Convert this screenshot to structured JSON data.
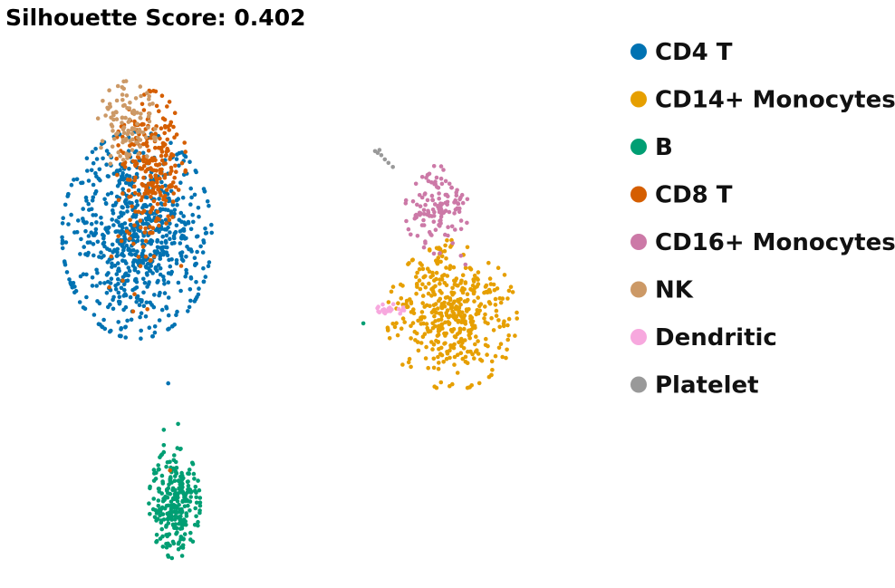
{
  "chart_data": {
    "type": "scatter",
    "title": "Silhouette Score: 0.402",
    "xlabel": "",
    "ylabel": "",
    "axes_visible": false,
    "grid": false,
    "legend_position": "right",
    "xlim": [
      0,
      100
    ],
    "ylim": [
      0,
      100
    ],
    "series": [
      {
        "name": "CD4 T",
        "color": "#0072B2",
        "clusters": [
          {
            "center": [
              15.3,
              60.0
            ],
            "sigma": [
              3.8,
              8.0
            ],
            "n": 760
          }
        ],
        "points": [
          [
            18.8,
            34.8
          ]
        ]
      },
      {
        "name": "CD14+ Monocytes",
        "color": "#E69F00",
        "clusters": [
          {
            "center": [
              50.5,
              46.0
            ],
            "sigma": [
              3.3,
              5.6
            ],
            "n": 430
          },
          {
            "center": [
              48.9,
              56.5
            ],
            "sigma": [
              0.8,
              2.6
            ],
            "n": 25
          }
        ],
        "points": []
      },
      {
        "name": "B",
        "color": "#009E73",
        "clusters": [
          {
            "center": [
              19.5,
              14.5
            ],
            "sigma": [
              1.3,
              4.3
            ],
            "n": 280
          }
        ],
        "points": [
          [
            18.3,
            24.3
          ],
          [
            19.9,
            27.9
          ],
          [
            18.3,
            26.9
          ],
          [
            40.6,
            45.0
          ]
        ]
      },
      {
        "name": "CD8 T",
        "color": "#D55E00",
        "clusters": [
          {
            "center": [
              16.8,
              72.5
            ],
            "sigma": [
              1.8,
              5.5
            ],
            "n": 240
          },
          {
            "center": [
              15.8,
              60.0
            ],
            "sigma": [
              2.2,
              6.0
            ],
            "n": 40
          }
        ],
        "points": [
          [
            19.0,
            20.0
          ]
        ]
      },
      {
        "name": "CD16+ Monocytes",
        "color": "#CC79A7",
        "clusters": [
          {
            "center": [
              48.8,
              64.3
            ],
            "sigma": [
              1.6,
              3.4
            ],
            "n": 130
          }
        ],
        "points": [
          [
            52.0,
            55.0
          ],
          [
            51.5,
            56.5
          ]
        ]
      },
      {
        "name": "NK",
        "color": "#CC9966",
        "clusters": [
          {
            "center": [
              14.2,
              78.5
            ],
            "sigma": [
              1.5,
              3.5
            ],
            "n": 110
          }
        ],
        "points": []
      },
      {
        "name": "Dendritic",
        "color": "#F7A8DE",
        "clusters": [
          {
            "center": [
              43.5,
              47.2
            ],
            "sigma": [
              0.9,
              0.5
            ],
            "n": 22
          }
        ],
        "points": []
      },
      {
        "name": "Platelet",
        "color": "#999999",
        "clusters": [],
        "points": [
          [
            41.9,
            74.3
          ],
          [
            42.2,
            74.0
          ],
          [
            42.6,
            73.6
          ],
          [
            43.0,
            72.9
          ],
          [
            43.4,
            72.3
          ],
          [
            43.9,
            71.6
          ],
          [
            42.4,
            74.5
          ]
        ]
      }
    ]
  }
}
